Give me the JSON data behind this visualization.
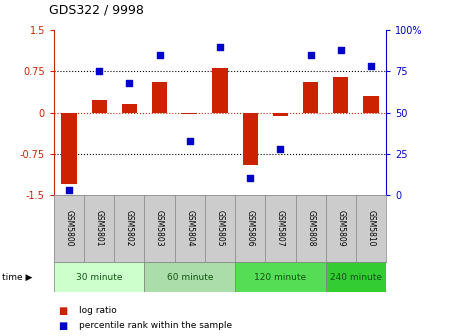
{
  "title": "GDS322 / 9998",
  "samples": [
    "GSM5800",
    "GSM5801",
    "GSM5802",
    "GSM5803",
    "GSM5804",
    "GSM5805",
    "GSM5806",
    "GSM5807",
    "GSM5808",
    "GSM5809",
    "GSM5810"
  ],
  "log_ratio": [
    -1.3,
    0.22,
    0.15,
    0.55,
    -0.02,
    0.82,
    -0.95,
    -0.06,
    0.55,
    0.65,
    0.3
  ],
  "percentile": [
    3,
    75,
    68,
    85,
    33,
    90,
    10,
    28,
    85,
    88,
    78
  ],
  "bar_color": "#cc2200",
  "dot_color": "#0000cc",
  "ylim_left": [
    -1.5,
    1.5
  ],
  "ylim_right": [
    0,
    100
  ],
  "yticks_left": [
    -1.5,
    -0.75,
    0,
    0.75,
    1.5
  ],
  "yticks_right": [
    0,
    25,
    50,
    75,
    100
  ],
  "ytick_labels_left": [
    "-1.5",
    "-0.75",
    "0",
    "0.75",
    "1.5"
  ],
  "ytick_labels_right": [
    "0",
    "25",
    "50",
    "75",
    "100%"
  ],
  "time_groups": [
    {
      "label": "30 minute",
      "start": 0,
      "end": 2,
      "color": "#ccffcc"
    },
    {
      "label": "60 minute",
      "start": 3,
      "end": 5,
      "color": "#aaddaa"
    },
    {
      "label": "120 minute",
      "start": 6,
      "end": 8,
      "color": "#55dd55"
    },
    {
      "label": "240 minute",
      "start": 9,
      "end": 10,
      "color": "#33cc33"
    }
  ],
  "legend_log_ratio": "log ratio",
  "legend_percentile": "percentile rank within the sample",
  "bar_width": 0.5,
  "background_color": "#ffffff",
  "plot_bg": "#ffffff",
  "sample_bg": "#cccccc"
}
